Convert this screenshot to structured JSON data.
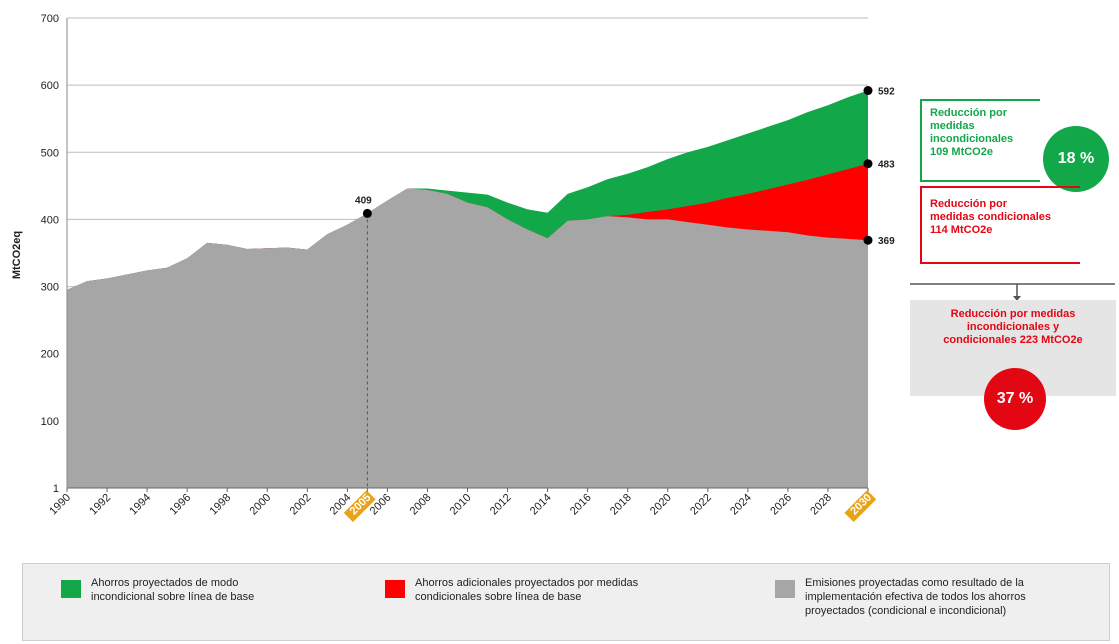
{
  "chart_data": {
    "type": "area",
    "ylabel": "MtCO2eq",
    "yticks": [
      1,
      100,
      200,
      300,
      400,
      500,
      600,
      700
    ],
    "ylim": [
      0,
      700
    ],
    "xlim": [
      1990,
      2030
    ],
    "xtick_labels": [
      "1990",
      "1992",
      "1994",
      "1996",
      "1998",
      "2000",
      "2002",
      "2004",
      "2005",
      "2006",
      "2008",
      "2010",
      "2012",
      "2014",
      "2016",
      "2018",
      "2020",
      "2022",
      "2024",
      "2026",
      "2028",
      "2030"
    ],
    "highlighted_years": [
      "2005",
      "2030"
    ],
    "grid": "horizontal",
    "series": [
      {
        "name": "Emisiones proyectadas como resultado de la implementación efectiva de todos los ahorros proyectados (condicional e incondicional)",
        "color": "#a6a6a6",
        "x": [
          1990,
          1991,
          1992,
          1993,
          1994,
          1995,
          1996,
          1997,
          1998,
          1999,
          2000,
          2001,
          2002,
          2003,
          2004,
          2005,
          2006,
          2007,
          2008,
          2009,
          2010,
          2011,
          2012,
          2013,
          2014,
          2015,
          2016,
          2017,
          2018,
          2019,
          2020,
          2021,
          2022,
          2023,
          2024,
          2025,
          2026,
          2027,
          2028,
          2029,
          2030
        ],
        "values": [
          295,
          308,
          312,
          318,
          324,
          328,
          342,
          365,
          362,
          356,
          357,
          358,
          355,
          378,
          392,
          409,
          428,
          446,
          444,
          438,
          425,
          418,
          400,
          385,
          372,
          398,
          400,
          405,
          403,
          400,
          400,
          396,
          392,
          388,
          385,
          383,
          381,
          376,
          373,
          371,
          369
        ]
      },
      {
        "name": "Ahorros adicionales proyectados por medidas condicionales sobre línea de base",
        "color": "#ff0000",
        "x": [
          1990,
          1991,
          1992,
          1993,
          1994,
          1995,
          1996,
          1997,
          1998,
          1999,
          2000,
          2001,
          2002,
          2003,
          2004,
          2005,
          2006,
          2007,
          2008,
          2009,
          2010,
          2011,
          2012,
          2013,
          2014,
          2015,
          2016,
          2017,
          2018,
          2019,
          2020,
          2021,
          2022,
          2023,
          2024,
          2025,
          2026,
          2027,
          2028,
          2029,
          2030
        ],
        "values": [
          295,
          308,
          312,
          318,
          324,
          328,
          342,
          365,
          362,
          356,
          357,
          358,
          355,
          378,
          392,
          409,
          428,
          446,
          444,
          438,
          425,
          418,
          400,
          385,
          372,
          398,
          400,
          405,
          407,
          411,
          415,
          420,
          425,
          432,
          438,
          445,
          452,
          459,
          467,
          475,
          483
        ]
      },
      {
        "name": "Ahorros proyectados de modo incondicional sobre línea de base",
        "color": "#12a84a",
        "x": [
          1990,
          1991,
          1992,
          1993,
          1994,
          1995,
          1996,
          1997,
          1998,
          1999,
          2000,
          2001,
          2002,
          2003,
          2004,
          2005,
          2006,
          2007,
          2008,
          2009,
          2010,
          2011,
          2012,
          2013,
          2014,
          2015,
          2016,
          2017,
          2018,
          2019,
          2020,
          2021,
          2022,
          2023,
          2024,
          2025,
          2026,
          2027,
          2028,
          2029,
          2030
        ],
        "values": [
          295,
          308,
          312,
          318,
          324,
          328,
          342,
          365,
          362,
          356,
          357,
          358,
          355,
          378,
          392,
          409,
          428,
          446,
          446,
          443,
          440,
          437,
          425,
          415,
          410,
          438,
          448,
          460,
          468,
          478,
          490,
          500,
          508,
          518,
          528,
          538,
          548,
          560,
          570,
          582,
          592
        ]
      }
    ],
    "annotations": [
      {
        "x": 2005,
        "y": 409,
        "label": "409"
      },
      {
        "x": 2030,
        "y": 592,
        "label": "592"
      },
      {
        "x": 2030,
        "y": 483,
        "label": "483"
      },
      {
        "x": 2030,
        "y": 369,
        "label": "369"
      }
    ]
  },
  "callouts": {
    "unconditional": {
      "line1": "Reducción  por medidas",
      "line2": "incondicionales",
      "line3": "109  MtCO2e",
      "percent": "18 %"
    },
    "conditional": {
      "line1": "Reducción  por",
      "line2": "medidas  condicionales",
      "line3": "114  MtCO2e"
    },
    "combined": {
      "line1": "Reducción  por medidas",
      "line2": "incondicionales  y",
      "line3": "condicionales  223  MtCO2e",
      "percent": "37 %"
    }
  },
  "legend": {
    "green": {
      "line1": "Ahorros proyectados de modo",
      "line2": "incondicional sobre línea de base"
    },
    "red": {
      "line1": "Ahorros adicionales proyectados por medidas",
      "line2": "condicionales sobre línea de base"
    },
    "grey": {
      "line1": "Emisiones proyectadas como resultado  de la",
      "line2": "implementación  efectiva de todos los ahorros",
      "line3": "proyectados (condicional e incondicional)"
    }
  }
}
